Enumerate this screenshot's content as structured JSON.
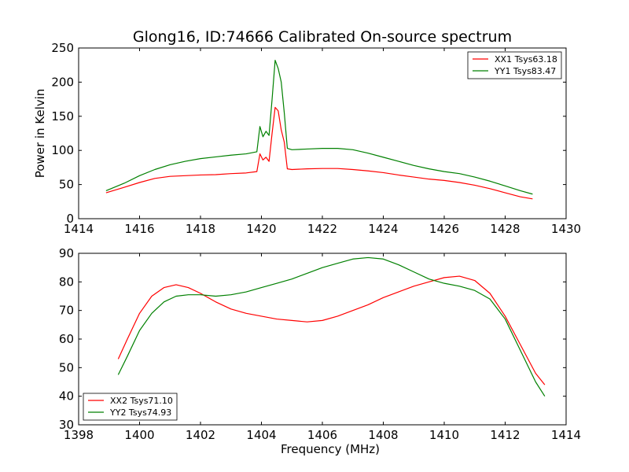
{
  "figure": {
    "title": "Glong16, ID:74666 Calibrated On-source spectrum",
    "background": "#ffffff"
  },
  "chart_data": [
    {
      "type": "line",
      "title": "Glong16, ID:74666 Calibrated On-source spectrum",
      "xlabel": "",
      "ylabel": "Power in Kelvin",
      "xlim": [
        1414,
        1430
      ],
      "ylim": [
        0,
        250
      ],
      "xticks": [
        1414,
        1416,
        1418,
        1420,
        1422,
        1424,
        1426,
        1428,
        1430
      ],
      "yticks": [
        0,
        50,
        100,
        150,
        200,
        250
      ],
      "grid": false,
      "legend": "top-right",
      "series": [
        {
          "name": "XX1 Tsys63.18",
          "color": "#ff0000",
          "x": [
            1414.9,
            1415.5,
            1416,
            1416.5,
            1417,
            1417.5,
            1418,
            1418.5,
            1419,
            1419.5,
            1419.85,
            1419.95,
            1420.05,
            1420.15,
            1420.25,
            1420.35,
            1420.45,
            1420.55,
            1420.65,
            1420.75,
            1420.85,
            1421,
            1421.5,
            1422,
            1422.5,
            1423,
            1423.5,
            1424,
            1424.5,
            1425,
            1425.5,
            1426,
            1426.5,
            1427,
            1427.5,
            1428,
            1428.5,
            1428.9
          ],
          "y": [
            38,
            46,
            53,
            59,
            62,
            63,
            64,
            64.5,
            66,
            67,
            69,
            95,
            86,
            90,
            84,
            125,
            163,
            158,
            130,
            112,
            73,
            72,
            73,
            73.5,
            73.5,
            72,
            70,
            67.5,
            64,
            61,
            58,
            56,
            53,
            49,
            44,
            38,
            32,
            29
          ]
        },
        {
          "name": "YY1 Tsys83.47",
          "color": "#008000",
          "x": [
            1414.9,
            1415.5,
            1416,
            1416.5,
            1417,
            1417.5,
            1418,
            1418.5,
            1419,
            1419.5,
            1419.85,
            1419.95,
            1420.05,
            1420.15,
            1420.25,
            1420.35,
            1420.45,
            1420.55,
            1420.65,
            1420.75,
            1420.85,
            1421,
            1421.5,
            1422,
            1422.5,
            1423,
            1423.5,
            1424,
            1424.5,
            1425,
            1425.5,
            1426,
            1426.5,
            1427,
            1427.5,
            1428,
            1428.5,
            1428.9
          ],
          "y": [
            41,
            52,
            63,
            72,
            79,
            84,
            88,
            90.5,
            93,
            95,
            98,
            135,
            120,
            128,
            122,
            175,
            232,
            220,
            200,
            155,
            103,
            101,
            102,
            103,
            103,
            101,
            96,
            90,
            84,
            78,
            73,
            69,
            66,
            61,
            55,
            48,
            41,
            36
          ]
        }
      ]
    },
    {
      "type": "line",
      "title": "",
      "xlabel": "Frequency (MHz)",
      "ylabel": "",
      "xlim": [
        1398,
        1414
      ],
      "ylim": [
        30,
        90
      ],
      "xticks": [
        1398,
        1400,
        1402,
        1404,
        1406,
        1408,
        1410,
        1412,
        1414
      ],
      "yticks": [
        30,
        40,
        50,
        60,
        70,
        80,
        90
      ],
      "grid": false,
      "legend": "bottom-left",
      "series": [
        {
          "name": "XX2 Tsys71.10",
          "color": "#ff0000",
          "x": [
            1399.3,
            1399.6,
            1400,
            1400.4,
            1400.8,
            1401.2,
            1401.6,
            1402,
            1402.5,
            1403,
            1403.5,
            1404,
            1404.5,
            1405,
            1405.5,
            1406,
            1406.5,
            1407,
            1407.5,
            1408,
            1408.5,
            1409,
            1409.5,
            1410,
            1410.5,
            1411,
            1411.5,
            1412,
            1412.5,
            1413,
            1413.3
          ],
          "y": [
            53,
            60,
            69,
            75,
            78,
            79,
            78,
            76,
            73,
            70.5,
            69,
            68,
            67,
            66.5,
            66,
            66.5,
            68,
            70,
            72,
            74.5,
            76.5,
            78.5,
            80,
            81.5,
            82,
            80.5,
            76,
            68,
            58,
            48,
            44
          ]
        },
        {
          "name": "YY2 Tsys74.93",
          "color": "#008000",
          "x": [
            1399.3,
            1399.6,
            1400,
            1400.4,
            1400.8,
            1401.2,
            1401.6,
            1402,
            1402.5,
            1403,
            1403.5,
            1404,
            1404.5,
            1405,
            1405.5,
            1406,
            1406.5,
            1407,
            1407.5,
            1408,
            1408.5,
            1409,
            1409.5,
            1410,
            1410.5,
            1411,
            1411.5,
            1412,
            1412.5,
            1413,
            1413.3
          ],
          "y": [
            47.5,
            54,
            63,
            69,
            73,
            75,
            75.5,
            75.5,
            75,
            75.5,
            76.5,
            78,
            79.5,
            81,
            83,
            85,
            86.5,
            88,
            88.5,
            88,
            86,
            83.5,
            81,
            79.5,
            78.5,
            77,
            74,
            67,
            56,
            45,
            40
          ]
        }
      ]
    }
  ]
}
